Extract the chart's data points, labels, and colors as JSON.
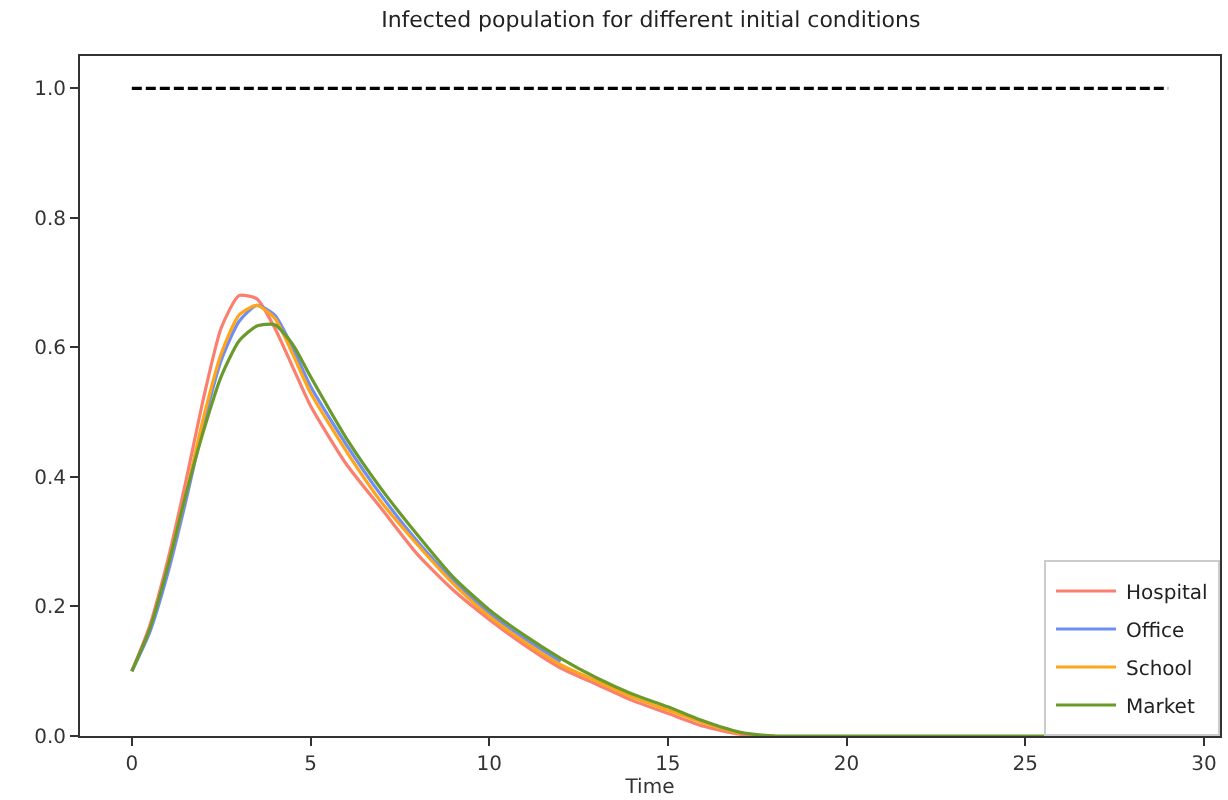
{
  "chart_data": {
    "type": "line",
    "title": "Infected population for different initial conditions",
    "xlabel": "Time",
    "x": [
      0,
      0.5,
      1,
      1.5,
      2,
      2.5,
      3,
      3.5,
      4,
      4.5,
      5,
      6,
      7,
      8,
      9,
      10,
      11,
      12,
      13,
      14,
      15,
      16,
      17,
      18,
      19,
      20,
      29
    ],
    "series": [
      {
        "type": "line",
        "color": "#000000",
        "line_style": "dashed",
        "x": [
          0,
          29
        ],
        "values": [
          1.0,
          1.0
        ]
      },
      {
        "name": "Hospital",
        "color": "#fa7f6e",
        "values": [
          0.1,
          0.17,
          0.27,
          0.39,
          0.52,
          0.63,
          0.68,
          0.675,
          0.63,
          0.57,
          0.51,
          0.42,
          0.35,
          0.28,
          0.225,
          0.18,
          0.14,
          0.105,
          0.08,
          0.055,
          0.035,
          0.015,
          0.003,
          0,
          null,
          null,
          null
        ]
      },
      {
        "name": "Office",
        "color": "#6f8ef5",
        "values": [
          0.1,
          0.16,
          0.25,
          0.36,
          0.48,
          0.58,
          0.64,
          0.665,
          0.65,
          0.6,
          0.54,
          0.45,
          0.37,
          0.3,
          0.24,
          0.19,
          0.15,
          0.115,
          null,
          null,
          null,
          null,
          null,
          null,
          null,
          null,
          null
        ]
      },
      {
        "name": "School",
        "color": "#ffa51a",
        "values": [
          null,
          null,
          0.26,
          0.37,
          0.49,
          0.59,
          0.65,
          0.665,
          0.645,
          0.59,
          0.53,
          0.44,
          0.36,
          0.295,
          0.235,
          0.185,
          0.145,
          0.11,
          0.085,
          0.06,
          0.04,
          0.02,
          0.004,
          null,
          null,
          null,
          null
        ]
      },
      {
        "name": "Market",
        "color": "#6a9a2a",
        "values": [
          0.1,
          0.165,
          0.26,
          0.37,
          0.47,
          0.555,
          0.61,
          0.633,
          0.635,
          0.605,
          0.555,
          0.46,
          0.38,
          0.31,
          0.245,
          0.195,
          0.155,
          0.12,
          0.09,
          0.065,
          0.045,
          0.023,
          0.006,
          0,
          0,
          0,
          0
        ]
      }
    ],
    "xlim": [
      -1.45,
      30.45
    ],
    "xticks": [
      0,
      5,
      10,
      15,
      20,
      25,
      30
    ],
    "ylim": [
      0,
      1.05
    ],
    "yticks": [
      {
        "value": 0,
        "label": "0.0"
      },
      0.2,
      0.4,
      0.6,
      0.8,
      {
        "value": 1,
        "label": "1.0"
      }
    ],
    "legend": "bottom right",
    "marker": "none",
    "line_style": "solid"
  }
}
